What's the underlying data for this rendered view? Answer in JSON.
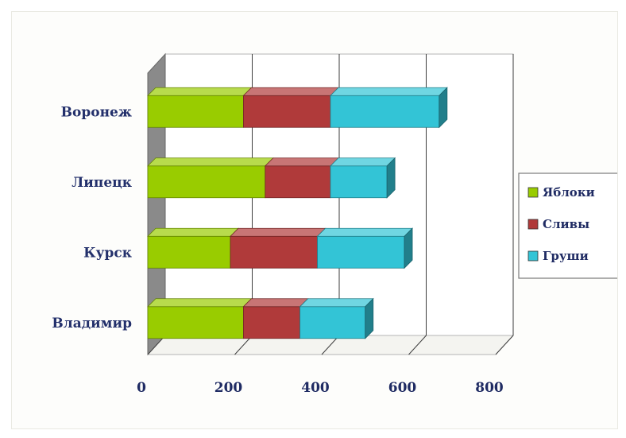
{
  "chart_data": {
    "type": "bar",
    "orientation": "horizontal",
    "stacked": true,
    "style": "3d",
    "categories": [
      "Воронеж",
      "Липецк",
      "Курск",
      "Владимир"
    ],
    "series": [
      {
        "name": "Яблоки",
        "values": [
          220,
          270,
          190,
          220
        ]
      },
      {
        "name": "Сливы",
        "values": [
          200,
          150,
          200,
          130
        ]
      },
      {
        "name": "Груши",
        "values": [
          250,
          130,
          200,
          150
        ]
      }
    ],
    "x_ticks": [
      "0",
      "200",
      "400",
      "600",
      "800"
    ],
    "xlim": [
      0,
      800
    ],
    "grid": true,
    "legend_position": "right",
    "colors": {
      "Яблоки": "#99cc00",
      "Сливы": "#b03a3a",
      "Груши": "#33c4d6",
      "wall": "#8a8a8a"
    }
  }
}
